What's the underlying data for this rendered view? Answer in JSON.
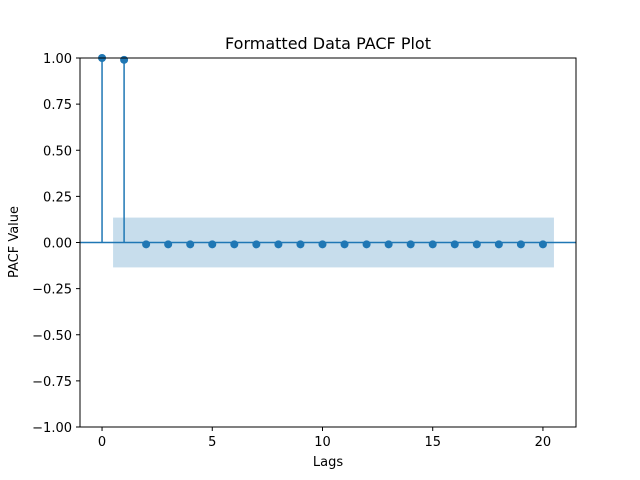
{
  "chart_data": {
    "type": "scatter",
    "title": "Formatted Data PACF Plot",
    "xlabel": "Lags",
    "ylabel": "PACF Value",
    "xlim": [
      -1,
      21.5
    ],
    "ylim": [
      -1.0,
      1.0
    ],
    "xticks": [
      0,
      5,
      10,
      15,
      20
    ],
    "xtick_labels": [
      "0",
      "5",
      "10",
      "15",
      "20"
    ],
    "yticks": [
      1.0,
      0.75,
      0.5,
      0.25,
      0.0,
      -0.25,
      -0.5,
      -0.75,
      -1.0
    ],
    "ytick_labels": [
      "1.00",
      "0.75",
      "0.50",
      "0.25",
      "0.00",
      "−0.25",
      "−0.50",
      "−0.75",
      "−1.00"
    ],
    "grid": false,
    "series": [
      {
        "lags": [
          0,
          1,
          2,
          3,
          4,
          5,
          6,
          7,
          8,
          9,
          10,
          11,
          12,
          13,
          14,
          15,
          16,
          17,
          18,
          19,
          20
        ],
        "values": [
          1.0,
          0.99,
          -0.01,
          -0.01,
          -0.01,
          -0.01,
          -0.01,
          -0.01,
          -0.01,
          -0.01,
          -0.01,
          -0.01,
          -0.01,
          -0.01,
          -0.01,
          -0.01,
          -0.01,
          -0.01,
          -0.01,
          -0.01,
          -0.01
        ]
      }
    ],
    "confidence_band": {
      "x_range": [
        0.5,
        20.5
      ],
      "upper": 0.135,
      "lower": -0.135
    },
    "zero_line": 0.0,
    "colors": {
      "series": "#1f77b4",
      "band": "#1f77b4",
      "axes": "#000000"
    }
  }
}
